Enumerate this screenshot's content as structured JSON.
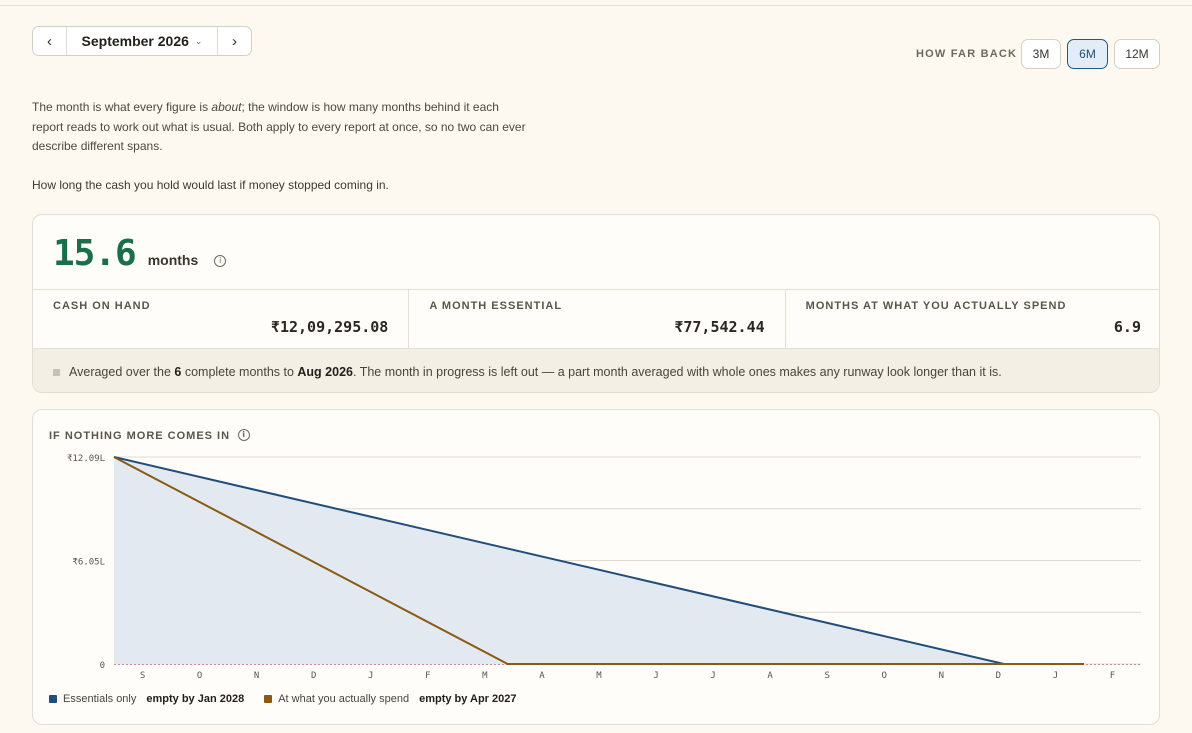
{
  "selector": {
    "prev_icon": "chevron-left-icon",
    "month_label": "September 2026",
    "dropdown_icon": "chevron-down-icon",
    "next_icon": "chevron-right-icon"
  },
  "window": {
    "label": "HOW FAR BACK",
    "options": [
      "3M",
      "6M",
      "12M"
    ],
    "selected": "6M"
  },
  "intro": {
    "part1": "The month is what every figure is ",
    "emph": "about",
    "part2": "; the window is how many months behind it each report reads to work out what is usual. Both apply to every report at once, so no two can ever describe different spans."
  },
  "question": "How long the cash you hold would last if money stopped coming in.",
  "runway": {
    "value": "15.6",
    "unit": "months",
    "info_icon": "info-icon",
    "stats": [
      {
        "label": "CASH ON HAND",
        "value": "₹12,09,295.08"
      },
      {
        "label": "A MONTH ESSENTIAL",
        "value": "₹77,542.44"
      },
      {
        "label": "MONTHS AT WHAT YOU ACTUALLY SPEND",
        "value": "6.9"
      }
    ],
    "note": {
      "pre": "Averaged over the ",
      "count": "6",
      "mid": " complete months to ",
      "month": "Aug 2026",
      "post": ". The month in progress is left out — a part month averaged with whole ones makes any runway look longer than it is."
    }
  },
  "chart": {
    "title": "IF NOTHING MORE COMES IN",
    "info_icon": "info-icon",
    "legend": [
      {
        "name": "Essentials only",
        "empty_text": "empty by Jan 2028",
        "color": "#1f4e7a"
      },
      {
        "name": "At what you actually spend",
        "empty_text": "empty by Apr 2027",
        "color": "#8a5a12"
      }
    ]
  },
  "chart_data": {
    "type": "area",
    "title": "IF NOTHING MORE COMES IN",
    "x": [
      "S",
      "O",
      "N",
      "D",
      "J",
      "F",
      "M",
      "A",
      "M",
      "J",
      "J",
      "A",
      "S",
      "O",
      "N",
      "D",
      "J",
      "F"
    ],
    "y_tick_labels": [
      "₹12.09L",
      "₹6.05L",
      "0"
    ],
    "ylim": [
      0,
      1209295
    ],
    "grid": true,
    "legend_position": "bottom-left",
    "series": [
      {
        "name": "Essentials only",
        "color": "#1f4e7a",
        "points": [
          [
            0,
            1209295
          ],
          [
            15.6,
            0
          ],
          [
            17,
            0
          ]
        ]
      },
      {
        "name": "At what you actually spend",
        "color": "#8a5a12",
        "points": [
          [
            0,
            1209295
          ],
          [
            6.9,
            0
          ],
          [
            17,
            0
          ]
        ]
      }
    ]
  }
}
